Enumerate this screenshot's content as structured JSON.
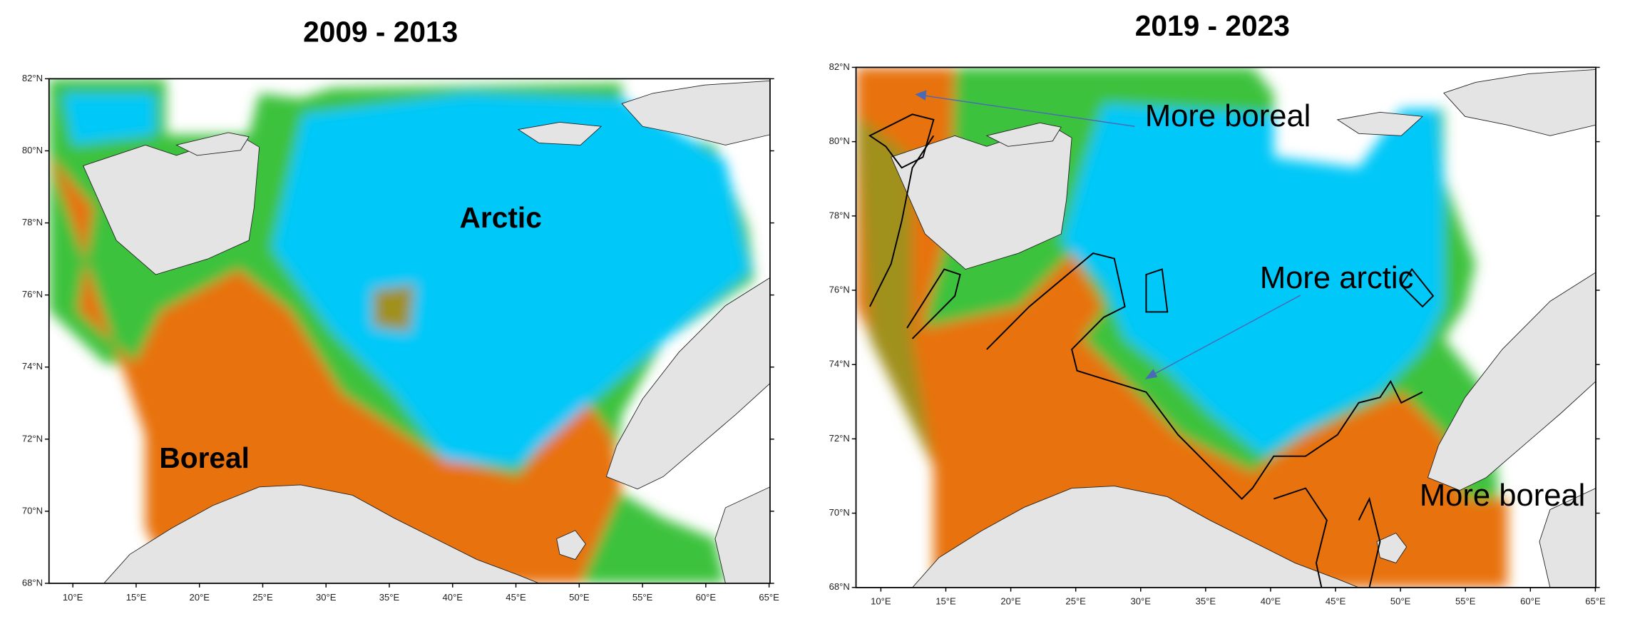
{
  "panels": [
    {
      "title": "2009 - 2013",
      "lat_labels": [
        "82°N",
        "80°N",
        "78°N",
        "76°N",
        "74°N",
        "72°N",
        "70°N",
        "68°N"
      ],
      "lon_labels": [
        "10°E",
        "15°E",
        "20°E",
        "25°E",
        "30°E",
        "35°E",
        "40°E",
        "45°E",
        "50°E",
        "55°E",
        "60°E",
        "65°E"
      ],
      "annotations": [
        "Arctic",
        "Boreal"
      ]
    },
    {
      "title": "2019 - 2023",
      "lat_labels": [
        "82°N",
        "80°N",
        "78°N",
        "76°N",
        "74°N",
        "72°N",
        "70°N",
        "68°N"
      ],
      "lon_labels": [
        "10°E",
        "15°E",
        "20°E",
        "25°E",
        "30°E",
        "35°E",
        "40°E",
        "45°E",
        "50°E",
        "55°E",
        "60°E",
        "65°E"
      ],
      "annotations": [
        "More boreal",
        "More arctic",
        "More boreal"
      ]
    }
  ]
}
